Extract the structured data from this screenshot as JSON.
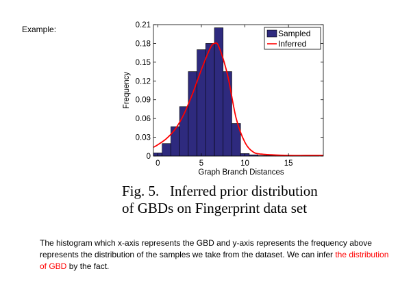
{
  "slide": {
    "example_label": "Example:",
    "caption_line1": "Fig. 5.   Inferred prior distribution",
    "caption_line2": "of GBDs on Fingerprint data set",
    "description_part1": "The histogram which x-axis represents the GBD and y-axis represents the frequency above represents the distribution of the samples we take from the dataset. We can infer ",
    "description_highlight": "the distribution of GBD",
    "description_part2": " by the fact.",
    "highlight_color": "#ff0000"
  },
  "chart_data": {
    "type": "bar",
    "title": "",
    "xlabel": "Graph Branch Distances",
    "ylabel": "Frequency",
    "xlim": [
      -0.5,
      19
    ],
    "ylim": [
      0,
      0.21
    ],
    "xticks": [
      0,
      5,
      10,
      15
    ],
    "xtick_labels": [
      "0",
      "5",
      "10",
      "15"
    ],
    "yticks": [
      0,
      0.03,
      0.06,
      0.09,
      0.12,
      0.15,
      0.18,
      0.21
    ],
    "ytick_labels": [
      "0",
      "0.03",
      "0.06",
      "0.09",
      "0.12",
      "0.15",
      "0.18",
      "0.21"
    ],
    "legend_position": "top-right",
    "series": [
      {
        "name": "Sampled",
        "kind": "histogram",
        "color": "#2e2a7e",
        "x": [
          0,
          1,
          2,
          3,
          4,
          5,
          6,
          7,
          8,
          9,
          10,
          11,
          12,
          13,
          14,
          15,
          16,
          17,
          18
        ],
        "values": [
          0.005,
          0.02,
          0.047,
          0.079,
          0.135,
          0.17,
          0.18,
          0.205,
          0.135,
          0.052,
          0.004,
          0.002,
          0.001,
          0.001,
          0.001,
          0.001,
          0.001,
          0.001,
          0.001
        ]
      },
      {
        "name": "Inferred",
        "kind": "line",
        "color": "#ff0000",
        "x": [
          -0.5,
          0,
          1,
          2,
          3,
          4,
          5,
          6,
          6.5,
          7,
          8,
          9,
          10,
          11,
          12,
          13,
          15,
          17,
          19
        ],
        "values": [
          0.014,
          0.018,
          0.028,
          0.043,
          0.067,
          0.1,
          0.138,
          0.172,
          0.18,
          0.175,
          0.13,
          0.06,
          0.022,
          0.006,
          0.003,
          0.002,
          0.001,
          0.001,
          0.001
        ]
      }
    ]
  }
}
